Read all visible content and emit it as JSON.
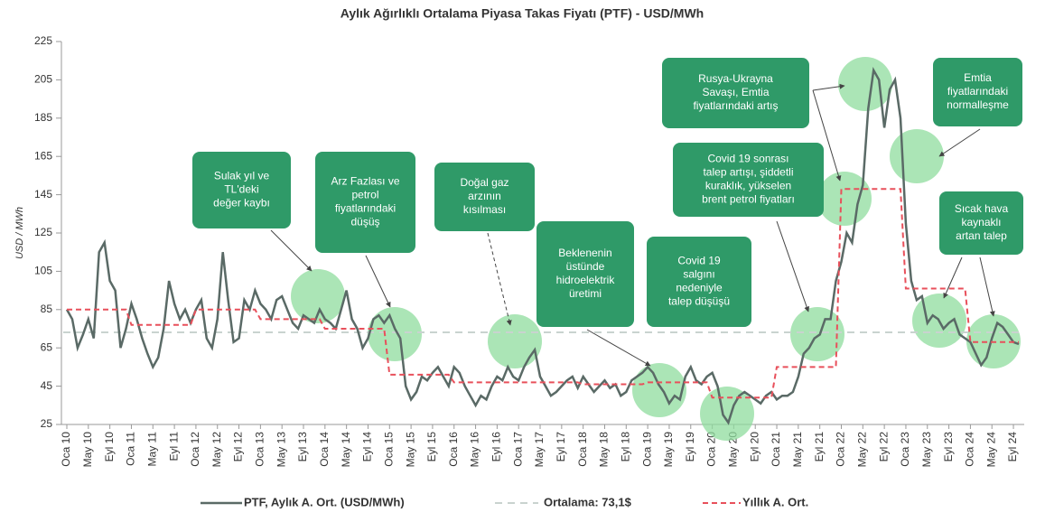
{
  "chart_data": {
    "type": "line",
    "title": "Aylık Ağırlıklı Ortalama Piyasa Takas Fiyatı (PTF) - USD/MWh",
    "y_label": "USD / MWh",
    "ylim": [
      25,
      225
    ],
    "yticks": [
      25,
      45,
      65,
      85,
      105,
      125,
      145,
      165,
      185,
      205,
      225
    ],
    "categories": [
      "Oca 10",
      null,
      null,
      null,
      "May 10",
      null,
      null,
      null,
      "Eyl 10",
      null,
      null,
      null,
      "Oca 11",
      null,
      null,
      null,
      "May 11",
      null,
      null,
      null,
      "Eyl 11",
      null,
      null,
      null,
      "Oca 12",
      null,
      null,
      null,
      "May 12",
      null,
      null,
      null,
      "Eyl 12",
      null,
      null,
      null,
      "Oca 13",
      null,
      null,
      null,
      "May 13",
      null,
      null,
      null,
      "Eyl 13",
      null,
      null,
      null,
      "Oca 14",
      null,
      null,
      null,
      "May 14",
      null,
      null,
      null,
      "Eyl 14",
      null,
      null,
      null,
      "Oca 15",
      null,
      null,
      null,
      "May 15",
      null,
      null,
      null,
      "Eyl 15",
      null,
      null,
      null,
      "Oca 16",
      null,
      null,
      null,
      "May 16",
      null,
      null,
      null,
      "Eyl 16",
      null,
      null,
      null,
      "Oca 17",
      null,
      null,
      null,
      "May 17",
      null,
      null,
      null,
      "Eyl 17",
      null,
      null,
      null,
      "Oca 18",
      null,
      null,
      null,
      "May 18",
      null,
      null,
      null,
      "Eyl 18",
      null,
      null,
      null,
      "Oca 19",
      null,
      null,
      null,
      "May 19",
      null,
      null,
      null,
      "Eyl 19",
      null,
      null,
      null,
      "Oca 20",
      null,
      null,
      null,
      "May 20",
      null,
      null,
      null,
      "Eyl 20",
      null,
      null,
      null,
      "Oca 21",
      null,
      null,
      null,
      "May 21",
      null,
      null,
      null,
      "Eyl 21",
      null,
      null,
      null,
      "Oca 22",
      null,
      null,
      null,
      "May 22",
      null,
      null,
      null,
      "Eyl 22",
      null,
      null,
      null,
      "Oca 23",
      null,
      null,
      null,
      "May 23",
      null,
      null,
      null,
      "Eyl 23",
      null,
      null,
      null,
      "Oca 24",
      null,
      null,
      null,
      "May 24",
      null,
      null,
      null,
      "Eyl 24",
      null
    ],
    "series": [
      {
        "name": "PTF, Aylık A. Ort. (USD/MWh)",
        "color": "#5a6a66",
        "style": "solid",
        "values": [
          85,
          80,
          65,
          72,
          80,
          70,
          115,
          120,
          100,
          95,
          65,
          75,
          88,
          80,
          70,
          62,
          55,
          60,
          75,
          100,
          88,
          80,
          85,
          78,
          85,
          90,
          70,
          65,
          80,
          115,
          90,
          68,
          70,
          90,
          85,
          95,
          88,
          85,
          80,
          90,
          92,
          85,
          78,
          75,
          82,
          80,
          78,
          85,
          80,
          78,
          75,
          85,
          95,
          80,
          75,
          65,
          70,
          80,
          82,
          78,
          82,
          75,
          70,
          45,
          38,
          42,
          50,
          48,
          52,
          55,
          50,
          45,
          55,
          52,
          45,
          40,
          35,
          40,
          38,
          45,
          50,
          48,
          55,
          50,
          48,
          55,
          60,
          64,
          50,
          45,
          40,
          42,
          45,
          48,
          50,
          44,
          50,
          46,
          42,
          45,
          48,
          44,
          46,
          40,
          42,
          48,
          50,
          52,
          55,
          52,
          46,
          42,
          36,
          40,
          38,
          50,
          55,
          48,
          46,
          50,
          52,
          45,
          30,
          26,
          35,
          40,
          42,
          40,
          38,
          36,
          40,
          42,
          38,
          40,
          40,
          42,
          50,
          62,
          65,
          70,
          72,
          80,
          80,
          100,
          110,
          125,
          120,
          140,
          150,
          190,
          210,
          205,
          180,
          200,
          205,
          185,
          130,
          100,
          90,
          92,
          78,
          82,
          80,
          75,
          78,
          80,
          72,
          70,
          68,
          62,
          56,
          60,
          70,
          78,
          76,
          72,
          68,
          67
        ]
      },
      {
        "name": "Yıllık A. Ort.",
        "color": "#e8505b",
        "style": "dashed",
        "values": [
          85,
          85,
          85,
          85,
          85,
          85,
          85,
          85,
          85,
          85,
          85,
          85,
          77,
          77,
          77,
          77,
          77,
          77,
          77,
          77,
          77,
          77,
          77,
          77,
          85,
          85,
          85,
          85,
          85,
          85,
          85,
          85,
          85,
          85,
          85,
          85,
          80,
          80,
          80,
          80,
          80,
          80,
          80,
          80,
          80,
          80,
          80,
          80,
          75,
          75,
          75,
          75,
          75,
          75,
          75,
          75,
          75,
          75,
          75,
          75,
          51,
          51,
          51,
          51,
          51,
          51,
          51,
          51,
          51,
          51,
          51,
          51,
          47,
          47,
          47,
          47,
          47,
          47,
          47,
          47,
          47,
          47,
          47,
          47,
          47,
          47,
          47,
          47,
          47,
          47,
          47,
          47,
          47,
          47,
          47,
          47,
          46,
          46,
          46,
          46,
          46,
          46,
          46,
          46,
          46,
          46,
          46,
          46,
          47,
          47,
          47,
          47,
          47,
          47,
          47,
          47,
          47,
          47,
          47,
          47,
          39,
          39,
          39,
          39,
          39,
          39,
          39,
          39,
          39,
          39,
          39,
          39,
          55,
          55,
          55,
          55,
          55,
          55,
          55,
          55,
          55,
          55,
          55,
          55,
          148,
          148,
          148,
          148,
          148,
          148,
          148,
          148,
          148,
          148,
          148,
          148,
          96,
          96,
          96,
          96,
          96,
          96,
          96,
          96,
          96,
          96,
          96,
          96,
          68,
          68,
          68,
          68,
          68,
          68,
          68,
          68,
          68,
          68
        ]
      }
    ],
    "reference_line": {
      "name": "Ortalama: 73,1$",
      "value": 73.1,
      "color": "#c9d3cf"
    },
    "annotations": [
      {
        "lines": [
          "Sulak yıl ve",
          "TL'deki",
          "değer kaybı"
        ]
      },
      {
        "lines": [
          "Arz Fazlası ve",
          "petrol",
          "fiyatlarındaki",
          "düşüş"
        ]
      },
      {
        "lines": [
          "Doğal gaz",
          "arzının",
          "kısılması"
        ]
      },
      {
        "lines": [
          "Beklenenin",
          "üstünde",
          "hidroelektrik",
          "üretimi"
        ]
      },
      {
        "lines": [
          "Covid 19",
          "salgını",
          "nedeniyle",
          "talep düşüşü"
        ]
      },
      {
        "lines": [
          "Covid 19 sonrası",
          "talep artışı, şiddetli",
          "kuraklık, yükselen",
          "brent petrol fiyatları"
        ]
      },
      {
        "lines": [
          "Rusya-Ukrayna",
          "Savaşı, Emtia",
          "fiyatlarındaki artış"
        ]
      },
      {
        "lines": [
          "Emtia",
          "fiyatlarındaki",
          "normalleşme"
        ]
      },
      {
        "lines": [
          "Sıcak hava",
          "kaynaklı",
          "artan talep"
        ]
      }
    ],
    "annotation_color": "#2f9a68"
  }
}
